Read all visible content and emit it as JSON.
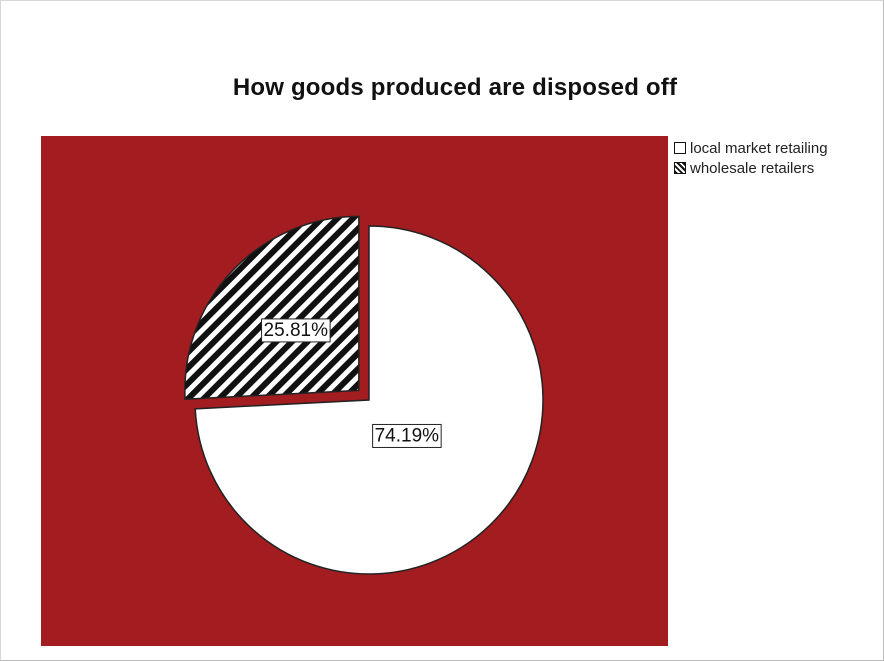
{
  "chart_data": {
    "type": "pie",
    "title": "How goods produced are disposed off",
    "plot_background": "#a31c20",
    "categories": [
      "local market retailing",
      "wholesale retailers"
    ],
    "values": [
      74.19,
      25.81
    ],
    "labels": [
      "74.19%",
      "25.81%"
    ],
    "fills": [
      "#ffffff",
      "hatched"
    ],
    "exploded": [
      false,
      true
    ],
    "legend_position": "top-right"
  }
}
